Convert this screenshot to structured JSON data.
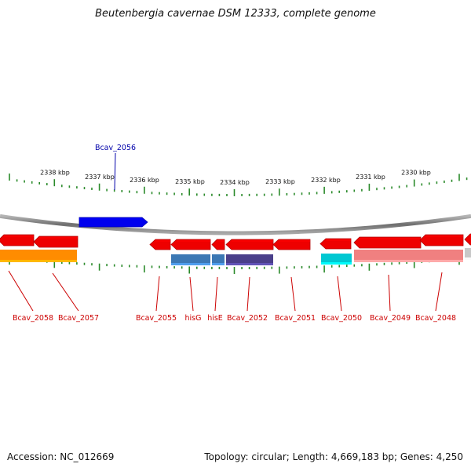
{
  "title": "Beutenbergia cavernae DSM 12333, complete genome",
  "accession": "Accession: NC_012669",
  "genome_info": "Topology: circular; Length: 4,669,183 bp; Genes: 4,250",
  "colors": {
    "backbone": "#8a8a8a",
    "tick": "#2a8a2a",
    "forward_gene": "#0000ee",
    "reverse_gene": "#ee0000",
    "forward_label": "#0000aa",
    "reverse_label": "#cc0000",
    "orange": "#ff8c00",
    "steelblue": "#3c78b4",
    "slateblue": "#4a3f8a",
    "cyan": "#00c8d2",
    "lightred": "#f08080",
    "lightgray": "#c8c8c8"
  },
  "scale_labels": [
    "2338 kbp",
    "2337 kbp",
    "2336 kbp",
    "2335 kbp",
    "2334 kbp",
    "2333 kbp",
    "2332 kbp",
    "2331 kbp",
    "2330 kbp"
  ],
  "gene_labels": {
    "forward": [
      "Bcav_2056"
    ],
    "reverse": [
      "Bcav_2058",
      "Bcav_2057",
      "Bcav_2055",
      "hisG",
      "hisE",
      "Bcav_2052",
      "Bcav_2051",
      "Bcav_2050",
      "Bcav_2049",
      "Bcav_2048"
    ]
  }
}
